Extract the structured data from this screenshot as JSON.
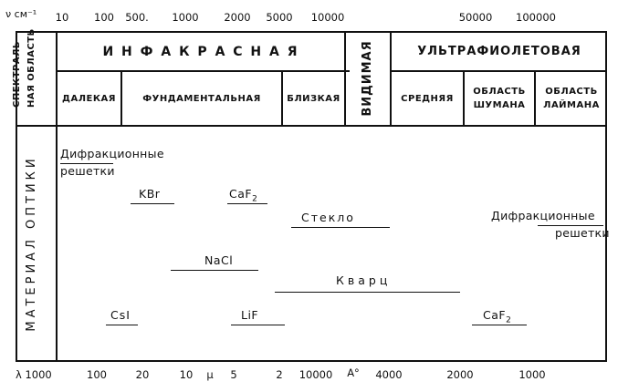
{
  "top_axis": {
    "unit_label": "ν см⁻¹",
    "ticks": [
      "10",
      "100",
      "500.",
      "1000",
      "2000",
      "5000",
      "10000",
      "50000",
      "100000"
    ]
  },
  "bottom_axis": {
    "lambda_label": "λ 1000",
    "ticks": [
      "100",
      "20",
      "10",
      "μ",
      "5",
      "2",
      "10000",
      "A°",
      "4000",
      "2000",
      "1000"
    ]
  },
  "left_labels": {
    "spectral_line1": "СПЕКТРАЛЬ–",
    "spectral_line2": "НАЯ ОБЛАСТЬ",
    "material": "МАТЕРИАЛ ОПТИКИ"
  },
  "regions": {
    "infrared": "И Н Ф А К Р А С Н А Я",
    "visible": "ВИДИМАЯ",
    "ultraviolet": "УЛЬТРАФИОЛЕТОВАЯ"
  },
  "subregions": {
    "far": "ДАЛЕКАЯ",
    "fundamental": "ФУНДАМЕНТАЛЬНАЯ",
    "near": "БЛИЗКАЯ",
    "middle": "СРЕДНЯЯ",
    "schumann_1": "ОБЛАСТЬ",
    "schumann_2": "ШУМАНА",
    "lyman_1": "ОБЛАСТЬ",
    "lyman_2": "ЛАЙМАНА"
  },
  "materials": {
    "grating_left_1": "Дифракционные",
    "grating_left_2": "решетки",
    "kbr": "KBr",
    "caf2_top": "CaF",
    "caf2_top_sub": "2",
    "glass": "Стекло",
    "grating_right_1": "Дифракционные",
    "grating_right_2": "решетки",
    "nacl": "NaCl",
    "quartz": "Кварц",
    "csi": "CsI",
    "lif": "LiF",
    "caf2_bottom": "CaF",
    "caf2_bottom_sub": "2"
  }
}
